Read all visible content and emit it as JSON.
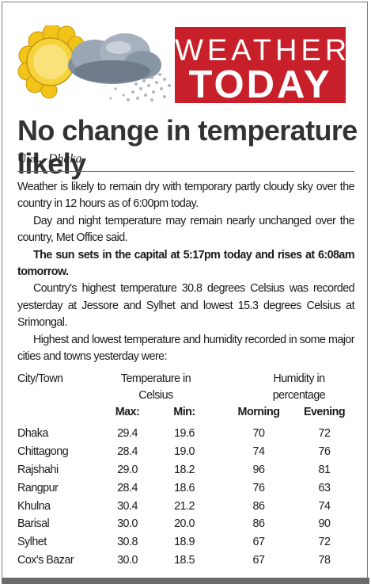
{
  "banner": {
    "line1": "WEATHER",
    "line2": "TODAY"
  },
  "headline": "No change in temperature likely",
  "byline": {
    "agency": "Unb,",
    "place": "Dhaka"
  },
  "paragraphs": [
    "Weather is likely to remain dry with temporary partly cloudy sky over the country in 12 hours as of 6:00pm today.",
    "Day and night temperature may remain nearly unchanged over the country, Met Office said.",
    "The sun sets in the capital at 5:17pm today and rises at 6:08am tomorrow.",
    "Country's highest temperature 30.8 degrees Celsius was recorded yesterday at Jessore and Sylhet and lowest 15.3 degrees Celsius at Srimongal.",
    "Highest and lowest temperature and humidity recorded in some major cities and towns yesterday were:"
  ],
  "table": {
    "header": {
      "city": "City/Town",
      "temp_line1": "Temperature in",
      "temp_line2": "Celsius",
      "hum_line1": "Humidity in",
      "hum_line2": "percentage"
    },
    "subheader": {
      "max": "Max:",
      "min": "Min:",
      "morning": "Morning",
      "evening": "Evening"
    },
    "rows": [
      {
        "city": "Dhaka",
        "max": "29.4",
        "min": "19.6",
        "morning": "70",
        "evening": "72"
      },
      {
        "city": "Chittagong",
        "max": "28.4",
        "min": "19.0",
        "morning": "74",
        "evening": "76"
      },
      {
        "city": "Rajshahi",
        "max": "29.0",
        "min": "18.2",
        "morning": "96",
        "evening": "81"
      },
      {
        "city": "Rangpur",
        "max": "28.4",
        "min": "18.6",
        "morning": "76",
        "evening": "63"
      },
      {
        "city": "Khulna",
        "max": "30.4",
        "min": "21.2",
        "morning": "86",
        "evening": "74"
      },
      {
        "city": "Barisal",
        "max": "30.0",
        "min": "20.0",
        "morning": "86",
        "evening": "90"
      },
      {
        "city": "Sylhet",
        "max": "30.8",
        "min": "18.9",
        "morning": "67",
        "evening": "72"
      },
      {
        "city": "Cox's Bazar",
        "max": "30.0",
        "min": "18.5",
        "morning": "67",
        "evening": "78"
      }
    ]
  },
  "colors": {
    "banner_red": "#c8202a",
    "sun_yellow": "#f2c318",
    "cloud_grey": "#8e9aa8"
  },
  "icons": [
    "sun-icon",
    "cloud-icon",
    "rain-icon"
  ]
}
